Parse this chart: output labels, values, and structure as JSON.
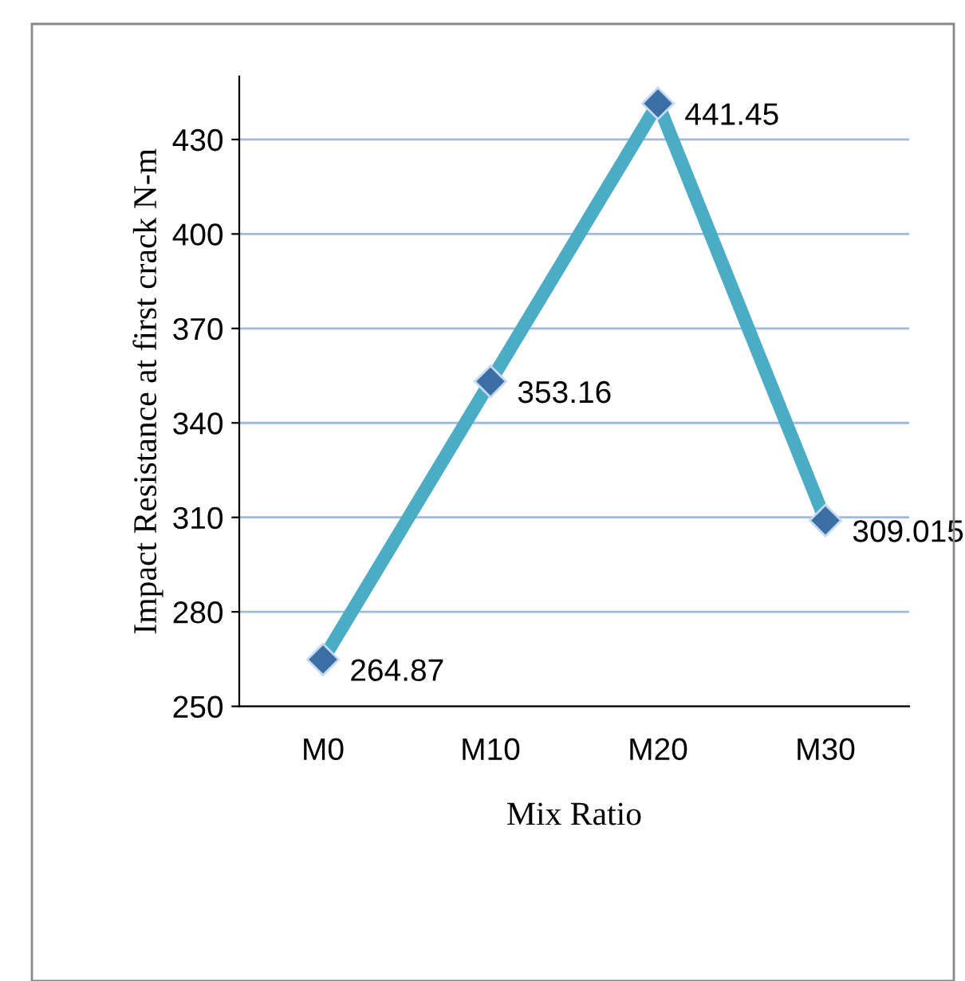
{
  "chart_data": {
    "type": "line",
    "xlabel": "Mix Ratio",
    "ylabel": "Impact Resistance at first crack N-m",
    "categories": [
      "M0",
      "M10",
      "M20",
      "M30"
    ],
    "series": [
      {
        "color": "#4bacc6",
        "values": [
          264.87,
          353.16,
          441.45,
          309.015
        ]
      }
    ],
    "ylim": [
      250,
      450
    ],
    "yticks": [
      250,
      280,
      310,
      340,
      370,
      400,
      430
    ],
    "grid": "y",
    "marker": "diamond",
    "line_style": "solid",
    "data_labels": true
  }
}
